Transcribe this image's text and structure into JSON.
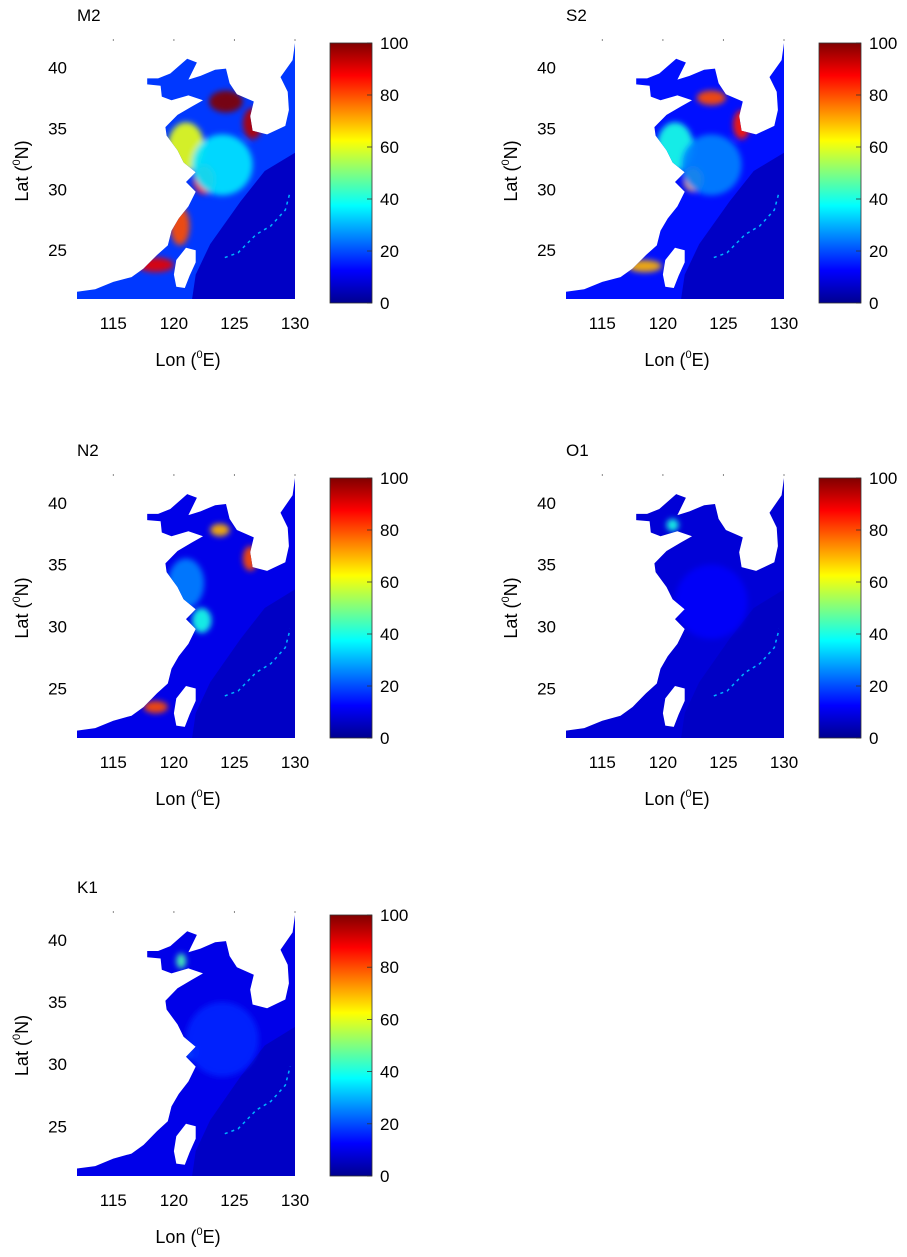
{
  "colors": {
    "colormap": "jet",
    "land": "#ffffff",
    "ocean_base": "#0a2ca6"
  },
  "chart_data": [
    {
      "type": "heatmap",
      "title": "M2",
      "xlabel": "Lon (°E)",
      "xlabel_main": "Lon (",
      "xlabel_sup": "0",
      "xlabel_tail": "E)",
      "ylabel": "Lat (°N)",
      "ylabel_main": "Lat (",
      "ylabel_sup": "0",
      "ylabel_tail": "N)",
      "xlim": [
        112,
        130
      ],
      "ylim": [
        21,
        42
      ],
      "xticks": [
        115,
        120,
        125,
        130
      ],
      "yticks": [
        25,
        30,
        35,
        40
      ],
      "colorbar": {
        "range": [
          0,
          100
        ],
        "ticks": [
          0,
          20,
          40,
          60,
          80,
          100
        ]
      },
      "hotspots": [
        {
          "lon": 124.3,
          "lat": 37.2,
          "value": 100,
          "sx": 1.4,
          "sy": 0.9
        },
        {
          "lon": 126.5,
          "lat": 35.4,
          "value": 95,
          "sx": 0.8,
          "sy": 1.3
        },
        {
          "lon": 122.5,
          "lat": 30.8,
          "value": 85,
          "sx": 0.9,
          "sy": 1.2
        },
        {
          "lon": 120.5,
          "lat": 27.0,
          "value": 80,
          "sx": 0.8,
          "sy": 1.6
        },
        {
          "lon": 118.5,
          "lat": 23.8,
          "value": 90,
          "sx": 1.5,
          "sy": 0.6
        },
        {
          "lon": 121.0,
          "lat": 33.5,
          "value": 60,
          "sx": 1.5,
          "sy": 2.0
        },
        {
          "lon": 124.0,
          "lat": 32.0,
          "value": 35,
          "sx": 2.5,
          "sy": 2.5
        }
      ],
      "base_value": 18
    },
    {
      "type": "heatmap",
      "title": "S2",
      "xlabel": "Lon (°E)",
      "xlabel_main": "Lon (",
      "xlabel_sup": "0",
      "xlabel_tail": "E)",
      "ylabel": "Lat (°N)",
      "ylabel_main": "Lat (",
      "ylabel_sup": "0",
      "ylabel_tail": "N)",
      "xlim": [
        112,
        130
      ],
      "ylim": [
        21,
        42
      ],
      "xticks": [
        115,
        120,
        125,
        130
      ],
      "yticks": [
        25,
        30,
        35,
        40
      ],
      "colorbar": {
        "range": [
          0,
          100
        ],
        "ticks": [
          0,
          20,
          40,
          60,
          80,
          100
        ]
      },
      "hotspots": [
        {
          "lon": 126.5,
          "lat": 35.3,
          "value": 85,
          "sx": 0.7,
          "sy": 1.2
        },
        {
          "lon": 124.0,
          "lat": 37.5,
          "value": 80,
          "sx": 1.2,
          "sy": 0.6
        },
        {
          "lon": 122.5,
          "lat": 30.8,
          "value": 70,
          "sx": 0.8,
          "sy": 1.0
        },
        {
          "lon": 118.5,
          "lat": 23.7,
          "value": 70,
          "sx": 1.4,
          "sy": 0.5
        },
        {
          "lon": 121.0,
          "lat": 33.5,
          "value": 40,
          "sx": 1.5,
          "sy": 2.0
        },
        {
          "lon": 124.0,
          "lat": 32.0,
          "value": 25,
          "sx": 2.5,
          "sy": 2.5
        }
      ],
      "base_value": 14
    },
    {
      "type": "heatmap",
      "title": "N2",
      "xlabel": "Lon (°E)",
      "xlabel_main": "Lon (",
      "xlabel_sup": "0",
      "xlabel_tail": "E)",
      "ylabel": "Lat (°N)",
      "ylabel_main": "Lat (",
      "ylabel_sup": "0",
      "ylabel_tail": "N)",
      "xlim": [
        112,
        130
      ],
      "ylim": [
        21,
        42
      ],
      "xticks": [
        115,
        120,
        125,
        130
      ],
      "yticks": [
        25,
        30,
        35,
        40
      ],
      "colorbar": {
        "range": [
          0,
          100
        ],
        "ticks": [
          0,
          20,
          40,
          60,
          80,
          100
        ]
      },
      "hotspots": [
        {
          "lon": 126.3,
          "lat": 35.5,
          "value": 80,
          "sx": 0.6,
          "sy": 1.0
        },
        {
          "lon": 123.8,
          "lat": 37.8,
          "value": 70,
          "sx": 0.8,
          "sy": 0.5
        },
        {
          "lon": 118.5,
          "lat": 23.5,
          "value": 80,
          "sx": 1.0,
          "sy": 0.5
        },
        {
          "lon": 122.3,
          "lat": 30.5,
          "value": 40,
          "sx": 0.8,
          "sy": 1.0
        },
        {
          "lon": 121.0,
          "lat": 33.5,
          "value": 25,
          "sx": 1.5,
          "sy": 2.0
        }
      ],
      "base_value": 10
    },
    {
      "type": "heatmap",
      "title": "O1",
      "xlabel": "Lon (°E)",
      "xlabel_main": "Lon (",
      "xlabel_sup": "0",
      "xlabel_tail": "E)",
      "ylabel": "Lat (°N)",
      "ylabel_main": "Lat (",
      "ylabel_sup": "0",
      "ylabel_tail": "N)",
      "xlim": [
        112,
        130
      ],
      "ylim": [
        21,
        42
      ],
      "xticks": [
        115,
        120,
        125,
        130
      ],
      "yticks": [
        25,
        30,
        35,
        40
      ],
      "colorbar": {
        "range": [
          0,
          100
        ],
        "ticks": [
          0,
          20,
          40,
          60,
          80,
          100
        ]
      },
      "hotspots": [
        {
          "lon": 120.8,
          "lat": 38.2,
          "value": 40,
          "sx": 0.5,
          "sy": 0.5
        },
        {
          "lon": 124.0,
          "lat": 32.0,
          "value": 12,
          "sx": 3.0,
          "sy": 3.0
        }
      ],
      "base_value": 8
    },
    {
      "type": "heatmap",
      "title": "K1",
      "xlabel": "Lon (°E)",
      "xlabel_main": "Lon (",
      "xlabel_sup": "0",
      "xlabel_tail": "E)",
      "ylabel": "Lat (°N)",
      "ylabel_main": "Lat (",
      "ylabel_sup": "0",
      "ylabel_tail": "N)",
      "xlim": [
        112,
        130
      ],
      "ylim": [
        21,
        42
      ],
      "xticks": [
        115,
        120,
        125,
        130
      ],
      "yticks": [
        25,
        30,
        35,
        40
      ],
      "colorbar": {
        "range": [
          0,
          100
        ],
        "ticks": [
          0,
          20,
          40,
          60,
          80,
          100
        ]
      },
      "hotspots": [
        {
          "lon": 120.6,
          "lat": 38.3,
          "value": 45,
          "sx": 0.4,
          "sy": 0.6
        },
        {
          "lon": 121.5,
          "lat": 31.0,
          "value": 22,
          "sx": 0.6,
          "sy": 0.6
        },
        {
          "lon": 124.0,
          "lat": 32.0,
          "value": 16,
          "sx": 3.0,
          "sy": 3.0
        }
      ],
      "base_value": 10
    }
  ]
}
